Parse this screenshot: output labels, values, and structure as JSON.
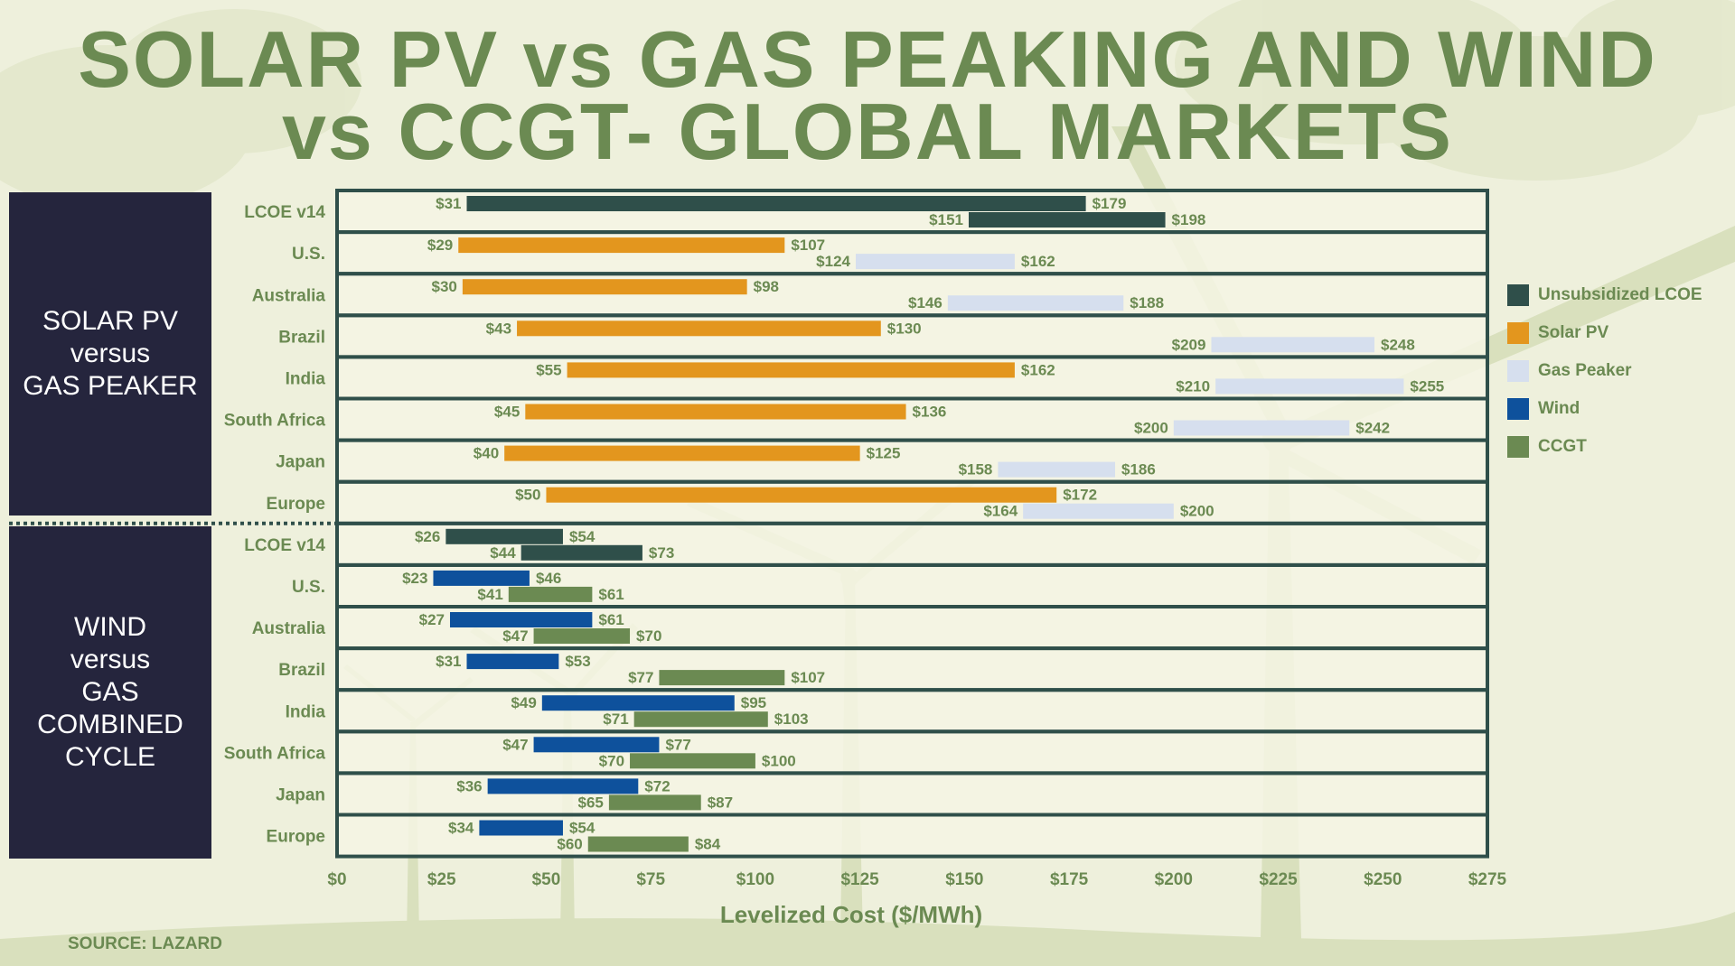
{
  "title_line1": "SOLAR PV vs GAS PEAKING AND WIND",
  "title_line2": "vs CCGT- GLOBAL MARKETS",
  "source": "SOURCE: LAZARD",
  "panels": {
    "top": [
      "SOLAR PV",
      "versus",
      "GAS PEAKER"
    ],
    "bottom": [
      "WIND",
      "versus",
      "GAS",
      "COMBINED",
      "CYCLE"
    ]
  },
  "legend": [
    {
      "label": "Unsubsidized LCOE",
      "color": "#2f4f4a",
      "icon": "square-swatch"
    },
    {
      "label": "Solar PV",
      "color": "#e3961e",
      "icon": "square-swatch"
    },
    {
      "label": "Gas Peaker",
      "color": "#d6dfee",
      "icon": "square-swatch"
    },
    {
      "label": "Wind",
      "color": "#0e519c",
      "icon": "square-swatch"
    },
    {
      "label": "CCGT",
      "color": "#6b8a52",
      "icon": "square-swatch"
    }
  ],
  "chart_data": {
    "type": "bar",
    "orientation": "horizontal-floating-range",
    "xlabel": "Levelized Cost ($/MWh)",
    "xlim": [
      0,
      275
    ],
    "xticks": [
      0,
      25,
      50,
      75,
      100,
      125,
      150,
      175,
      200,
      225,
      250,
      275
    ],
    "xtick_labels": [
      "$0",
      "$25",
      "$50",
      "$75",
      "$100",
      "$125",
      "$150",
      "$175",
      "$200",
      "$225",
      "$250",
      "$275"
    ],
    "colors": {
      "Unsubsidized LCOE": "#2f4f4a",
      "Solar PV": "#e3961e",
      "Gas Peaker": "#d6dfee",
      "Wind": "#0e519c",
      "CCGT": "#6b8a52"
    },
    "groups": [
      {
        "name": "SOLAR PV versus GAS PEAKER",
        "rows": [
          {
            "label": "LCOE v14",
            "bars": [
              {
                "series": "Unsubsidized LCOE",
                "low": 31,
                "high": 179,
                "low_label": "$31",
                "high_label": "$179"
              },
              {
                "series": "Unsubsidized LCOE",
                "low": 151,
                "high": 198,
                "low_label": "$151",
                "high_label": "$198"
              }
            ]
          },
          {
            "label": "U.S.",
            "bars": [
              {
                "series": "Solar PV",
                "low": 29,
                "high": 107,
                "low_label": "$29",
                "high_label": "$107"
              },
              {
                "series": "Gas Peaker",
                "low": 124,
                "high": 162,
                "low_label": "$124",
                "high_label": "$162"
              }
            ]
          },
          {
            "label": "Australia",
            "bars": [
              {
                "series": "Solar PV",
                "low": 30,
                "high": 98,
                "low_label": "$30",
                "high_label": "$98"
              },
              {
                "series": "Gas Peaker",
                "low": 146,
                "high": 188,
                "low_label": "$146",
                "high_label": "$188"
              }
            ]
          },
          {
            "label": "Brazil",
            "bars": [
              {
                "series": "Solar PV",
                "low": 43,
                "high": 130,
                "low_label": "$43",
                "high_label": "$130"
              },
              {
                "series": "Gas Peaker",
                "low": 209,
                "high": 248,
                "low_label": "$209",
                "high_label": "$248"
              }
            ]
          },
          {
            "label": "India",
            "bars": [
              {
                "series": "Solar PV",
                "low": 55,
                "high": 162,
                "low_label": "$55",
                "high_label": "$162"
              },
              {
                "series": "Gas Peaker",
                "low": 210,
                "high": 255,
                "low_label": "$210",
                "high_label": "$255"
              }
            ]
          },
          {
            "label": "South Africa",
            "bars": [
              {
                "series": "Solar PV",
                "low": 45,
                "high": 136,
                "low_label": "$45",
                "high_label": "$136"
              },
              {
                "series": "Gas Peaker",
                "low": 200,
                "high": 242,
                "low_label": "$200",
                "high_label": "$242"
              }
            ]
          },
          {
            "label": "Japan",
            "bars": [
              {
                "series": "Solar PV",
                "low": 40,
                "high": 125,
                "low_label": "$40",
                "high_label": "$125"
              },
              {
                "series": "Gas Peaker",
                "low": 158,
                "high": 186,
                "low_label": "$158",
                "high_label": "$186"
              }
            ]
          },
          {
            "label": "Europe",
            "bars": [
              {
                "series": "Solar PV",
                "low": 50,
                "high": 172,
                "low_label": "$50",
                "high_label": "$172"
              },
              {
                "series": "Gas Peaker",
                "low": 164,
                "high": 200,
                "low_label": "$164",
                "high_label": "$200"
              }
            ]
          }
        ]
      },
      {
        "name": "WIND versus GAS COMBINED CYCLE",
        "rows": [
          {
            "label": "LCOE v14",
            "bars": [
              {
                "series": "Unsubsidized LCOE",
                "low": 26,
                "high": 54,
                "low_label": "$26",
                "high_label": "$54"
              },
              {
                "series": "Unsubsidized LCOE",
                "low": 44,
                "high": 73,
                "low_label": "$44",
                "high_label": "$73"
              }
            ]
          },
          {
            "label": "U.S.",
            "bars": [
              {
                "series": "Wind",
                "low": 23,
                "high": 46,
                "low_label": "$23",
                "high_label": "$46"
              },
              {
                "series": "CCGT",
                "low": 41,
                "high": 61,
                "low_label": "$41",
                "high_label": "$61"
              }
            ]
          },
          {
            "label": "Australia",
            "bars": [
              {
                "series": "Wind",
                "low": 27,
                "high": 61,
                "low_label": "$27",
                "high_label": "$61"
              },
              {
                "series": "CCGT",
                "low": 47,
                "high": 70,
                "low_label": "$47",
                "high_label": "$70"
              }
            ]
          },
          {
            "label": "Brazil",
            "bars": [
              {
                "series": "Wind",
                "low": 31,
                "high": 53,
                "low_label": "$31",
                "high_label": "$53"
              },
              {
                "series": "CCGT",
                "low": 77,
                "high": 107,
                "low_label": "$77",
                "high_label": "$107"
              }
            ]
          },
          {
            "label": "India",
            "bars": [
              {
                "series": "Wind",
                "low": 49,
                "high": 95,
                "low_label": "$49",
                "high_label": "$95"
              },
              {
                "series": "CCGT",
                "low": 71,
                "high": 103,
                "low_label": "$71",
                "high_label": "$103"
              }
            ]
          },
          {
            "label": "South Africa",
            "bars": [
              {
                "series": "Wind",
                "low": 47,
                "high": 77,
                "low_label": "$47",
                "high_label": "$77"
              },
              {
                "series": "CCGT",
                "low": 70,
                "high": 100,
                "low_label": "$70",
                "high_label": "$100"
              }
            ]
          },
          {
            "label": "Japan",
            "bars": [
              {
                "series": "Wind",
                "low": 36,
                "high": 72,
                "low_label": "$36",
                "high_label": "$72"
              },
              {
                "series": "CCGT",
                "low": 65,
                "high": 87,
                "low_label": "$65",
                "high_label": "$87"
              }
            ]
          },
          {
            "label": "Europe",
            "bars": [
              {
                "series": "Wind",
                "low": 34,
                "high": 54,
                "low_label": "$34",
                "high_label": "$54"
              },
              {
                "series": "CCGT",
                "low": 60,
                "high": 84,
                "low_label": "$60",
                "high_label": "$84"
              }
            ]
          }
        ]
      }
    ]
  }
}
